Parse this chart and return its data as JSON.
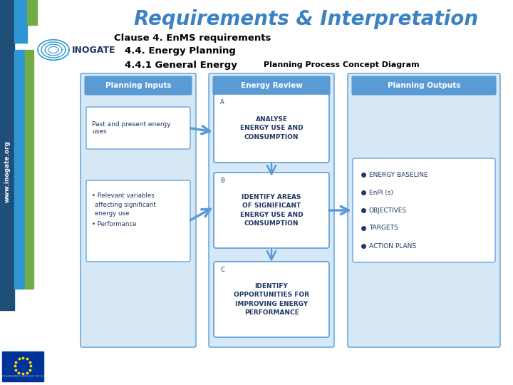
{
  "title": "Requirements & Interpretation",
  "title_color": "#3B82C4",
  "title_fontsize": 20,
  "subtitle1": "Clause 4. EnMS requirements",
  "subtitle2": "4.4. Energy Planning",
  "subtitle3_left": "4.4.1 General Energy",
  "subtitle3_right": "Planning Process Concept Diagram",
  "bg_color": "#FFFFFF",
  "panel_bg": "#D6E8F5",
  "panel_border": "#5B9BD5",
  "box_bg": "#FFFFFF",
  "box_border": "#5B9BD5",
  "text_color": "#1F3864",
  "header_text_color": "#1F3864",
  "arrow_color": "#5B9BD5",
  "col1_header": "Planning Inputs",
  "col2_header": "Energy Review",
  "col3_header": "Planning Outputs",
  "box_a_label": "A",
  "box_a_text": "ANALYSE\nENERGY USE AND\nCONSUMPTION",
  "box_b_label": "B",
  "box_b_text": "IDENTIFY AREAS\nOF SIGNIFICANT\nENERGY USE AND\nCONSUMPTION",
  "box_c_label": "C",
  "box_c_text": "IDENTIFY\nOPPORTUNITIES FOR\nIMPROVING ENERGY\nPERFORMANCE",
  "input_box1_text": "Past and present energy\nuses",
  "input_box2_text": "Relevant variables\naffecting significant\nenergy use\n\nPerformance",
  "output_bullets": [
    "ENERGY BASELINE",
    "EnPI (s)",
    "OBJECTIVES",
    "TARGETS",
    "ACTION PLANS"
  ],
  "sidebar_dark": "#1F4E79",
  "sidebar_mid": "#2E96D3",
  "sidebar_green": "#70AD47",
  "eu_blue": "#003399",
  "eu_star": "#FFD700",
  "inogate_color": "#2E96D3",
  "inogate_text_color": "#1F3864"
}
